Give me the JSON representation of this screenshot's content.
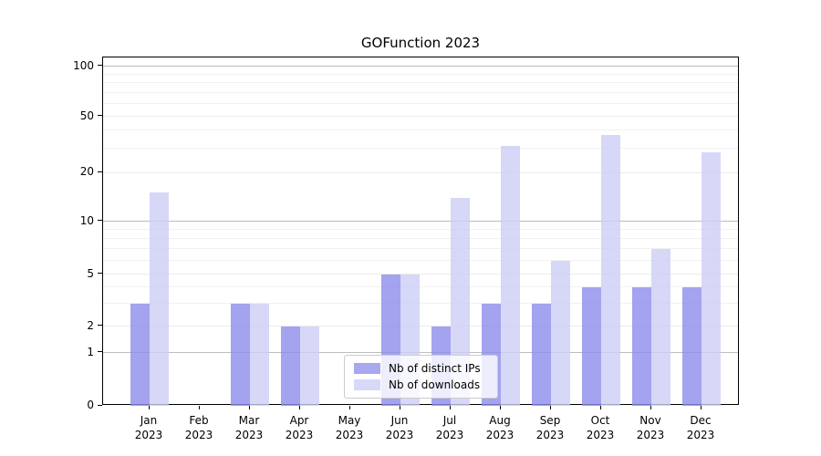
{
  "chart_data": {
    "type": "bar",
    "title": "GOFunction 2023",
    "categories": [
      "Jan",
      "Feb",
      "Mar",
      "Apr",
      "May",
      "Jun",
      "Jul",
      "Aug",
      "Sep",
      "Oct",
      "Nov",
      "Dec"
    ],
    "year_label": "2023",
    "series": [
      {
        "name": "Nb of distinct IPs",
        "color": "rgba(140,140,235,0.8)",
        "legend_color": "#a8a8ee",
        "values": [
          3,
          0,
          3,
          2,
          0,
          5,
          2,
          3,
          3,
          4,
          4,
          4
        ]
      },
      {
        "name": "Nb of downloads",
        "color": "rgba(205,205,245,0.8)",
        "legend_color": "#d8d8f8",
        "values": [
          15,
          0,
          3,
          2,
          0,
          5,
          14,
          31,
          6,
          37,
          7,
          28
        ]
      }
    ],
    "y_axis": {
      "ticks": [
        0,
        1,
        2,
        5,
        10,
        20,
        50,
        100
      ],
      "major_gridline_values": [
        1,
        10,
        100
      ],
      "minor_gridline_values": [
        3,
        4,
        6,
        7,
        8,
        9,
        30,
        40,
        60,
        70,
        80,
        90
      ],
      "scale": "log-like",
      "range": [
        0,
        100
      ]
    },
    "x_axis": {
      "label_lines": 2
    },
    "legend": {
      "position": "inside-bottom-center"
    },
    "grid": "horizontal-only",
    "colors": {
      "bar_dark": "#a8a8ee",
      "bar_light": "#d8d8f8",
      "grid_major": "#bdbdbd",
      "grid_minor": "#f1f1f1",
      "spine": "#000000"
    }
  }
}
